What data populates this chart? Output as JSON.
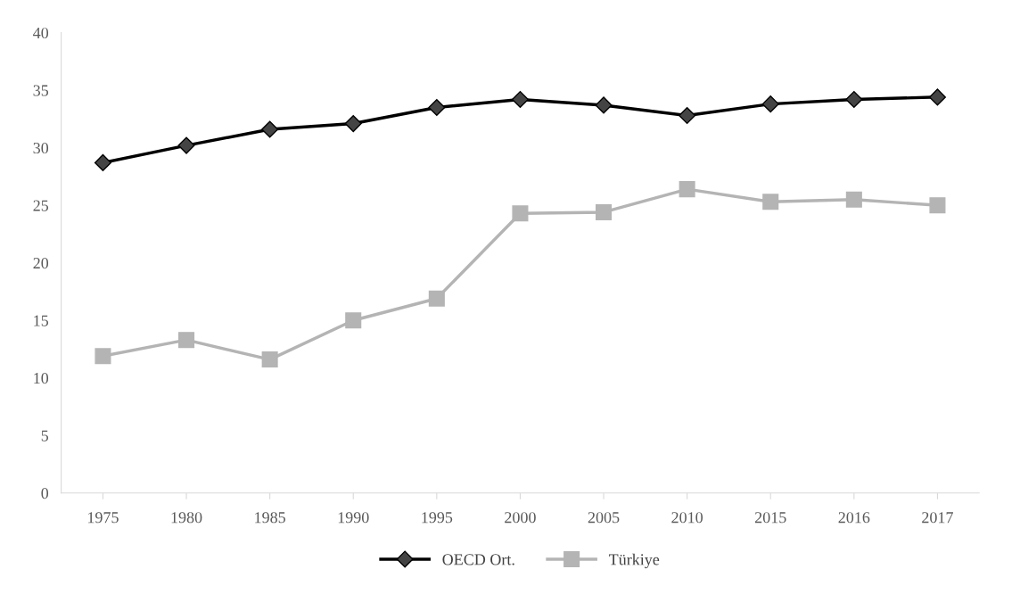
{
  "chart_data": {
    "type": "line",
    "categories": [
      "1975",
      "1980",
      "1985",
      "1990",
      "1995",
      "2000",
      "2005",
      "2010",
      "2015",
      "2016",
      "2017"
    ],
    "series": [
      {
        "name": "OECD Ort.",
        "color": "#000000",
        "marker": "diamond",
        "values": [
          28.7,
          30.2,
          31.6,
          32.1,
          33.5,
          34.2,
          33.7,
          32.8,
          33.8,
          34.2,
          34.4
        ]
      },
      {
        "name": "Türkiye",
        "color": "#b4b4b4",
        "marker": "square",
        "values": [
          11.9,
          13.3,
          11.6,
          15.0,
          16.9,
          24.3,
          24.4,
          26.4,
          25.3,
          25.5,
          25.0
        ]
      }
    ],
    "ylim": [
      0,
      40
    ],
    "yticks": [
      0,
      5,
      10,
      15,
      20,
      25,
      30,
      35,
      40
    ],
    "grid": false,
    "legend": "bottom",
    "line_style": "solid"
  }
}
